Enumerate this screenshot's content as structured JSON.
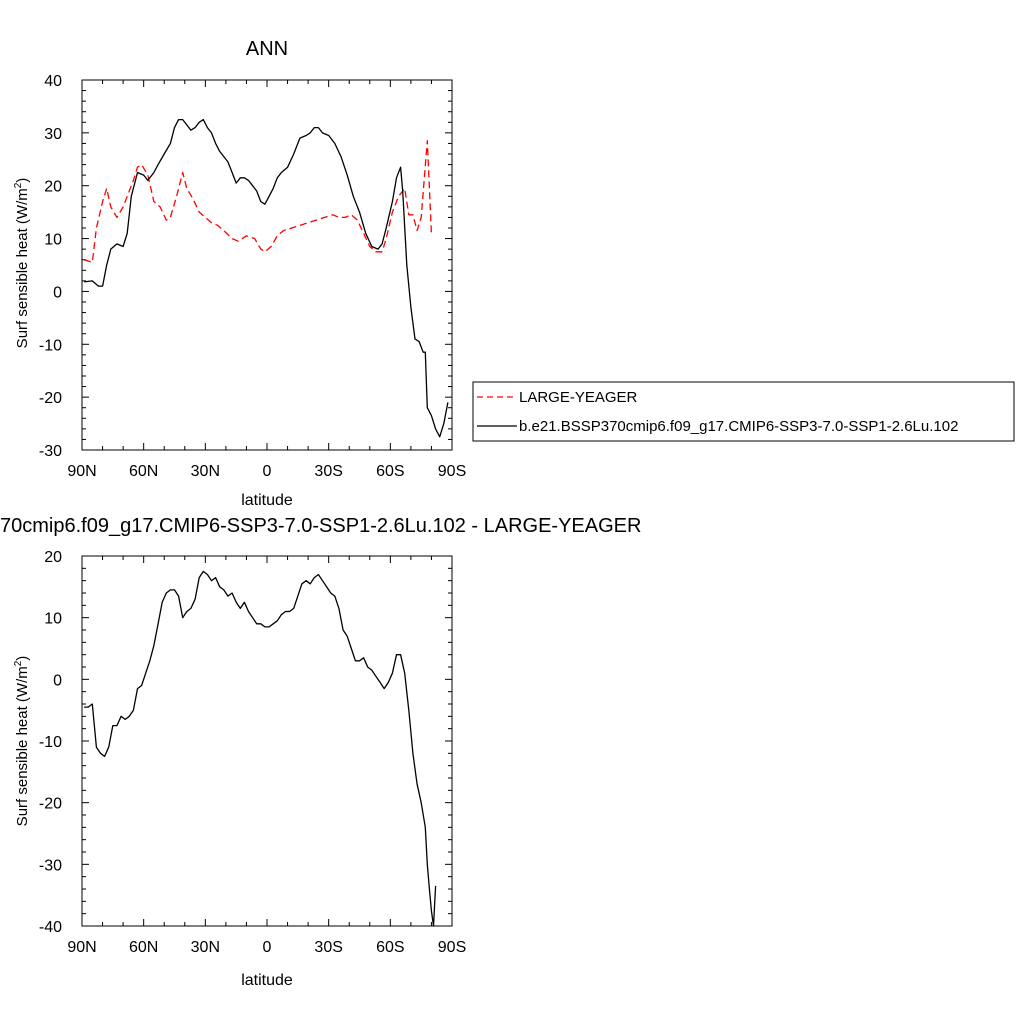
{
  "chart_data": [
    {
      "type": "line",
      "title": "ANN",
      "xlabel": "latitude",
      "ylabel": "Surf sensible heat (W/m",
      "ylabel_sup": "2",
      "ylabel_close": ")",
      "xlim": [
        90,
        -90
      ],
      "ylim": [
        -30,
        40
      ],
      "xticks": [
        90,
        60,
        30,
        0,
        -30,
        -60,
        -90
      ],
      "xtick_labels": [
        "90N",
        "60N",
        "30N",
        "0",
        "30S",
        "60S",
        "90S"
      ],
      "yticks": [
        -30,
        -20,
        -10,
        0,
        10,
        20,
        30,
        40
      ],
      "ytick_labels": [
        "-30",
        "-20",
        "-10",
        "0",
        "10",
        "20",
        "30",
        "40"
      ],
      "legend_position": "right",
      "series": [
        {
          "name": "LARGE-YEAGER",
          "color": "#ff0000",
          "dash": "dashed",
          "points": [
            [
              89,
              6
            ],
            [
              85,
              5.5
            ],
            [
              83,
              12
            ],
            [
              80,
              17
            ],
            [
              78,
              19.5
            ],
            [
              76,
              16
            ],
            [
              73,
              14
            ],
            [
              70,
              16
            ],
            [
              68,
              18
            ],
            [
              65,
              21
            ],
            [
              63,
              23.5
            ],
            [
              61,
              24
            ],
            [
              58,
              22
            ],
            [
              55,
              17
            ],
            [
              52,
              16
            ],
            [
              49,
              13.5
            ],
            [
              47,
              14
            ],
            [
              44,
              18
            ],
            [
              41,
              22.5
            ],
            [
              39,
              19.5
            ],
            [
              36,
              17.5
            ],
            [
              33,
              15
            ],
            [
              30,
              14
            ],
            [
              27,
              13
            ],
            [
              24,
              12.5
            ],
            [
              21,
              11.5
            ],
            [
              17,
              10
            ],
            [
              14,
              9.5
            ],
            [
              10,
              10.5
            ],
            [
              6,
              10
            ],
            [
              3,
              8
            ],
            [
              1,
              7.5
            ],
            [
              -2,
              8.5
            ],
            [
              -5,
              10.5
            ],
            [
              -8,
              11.5
            ],
            [
              -12,
              12
            ],
            [
              -16,
              12.5
            ],
            [
              -20,
              13
            ],
            [
              -24,
              13.5
            ],
            [
              -28,
              14
            ],
            [
              -32,
              14.5
            ],
            [
              -35,
              14
            ],
            [
              -38,
              14
            ],
            [
              -41,
              14.5
            ],
            [
              -44,
              13.5
            ],
            [
              -47,
              11
            ],
            [
              -50,
              8.5
            ],
            [
              -53,
              7.5
            ],
            [
              -56,
              7.5
            ],
            [
              -58,
              10
            ],
            [
              -61,
              15
            ],
            [
              -64,
              18
            ],
            [
              -67,
              19.5
            ],
            [
              -69,
              14.5
            ],
            [
              -71,
              14.5
            ],
            [
              -73,
              11.5
            ],
            [
              -75,
              14
            ],
            [
              -78,
              28.5
            ],
            [
              -80,
              11
            ]
          ]
        },
        {
          "name": "b.e21.BSSP370cmip6.f09_g17.CMIP6-SSP3-7.0-SSP1-2.6Lu.102",
          "color": "#000000",
          "dash": "solid",
          "points": [
            [
              89,
              1.8
            ],
            [
              85,
              2
            ],
            [
              82,
              1
            ],
            [
              80,
              1
            ],
            [
              78,
              5
            ],
            [
              76,
              8
            ],
            [
              73,
              9
            ],
            [
              70,
              8.5
            ],
            [
              68,
              11
            ],
            [
              66,
              18
            ],
            [
              63,
              22.5
            ],
            [
              60,
              22
            ],
            [
              58,
              21
            ],
            [
              55,
              22.5
            ],
            [
              53,
              24
            ],
            [
              50,
              26
            ],
            [
              47,
              28
            ],
            [
              45,
              31
            ],
            [
              43,
              32.5
            ],
            [
              41,
              32.5
            ],
            [
              39,
              31.5
            ],
            [
              37,
              30.5
            ],
            [
              35,
              31
            ],
            [
              33,
              32
            ],
            [
              31,
              32.5
            ],
            [
              29,
              31
            ],
            [
              27,
              30
            ],
            [
              25,
              28
            ],
            [
              23,
              26.5
            ],
            [
              21,
              25.5
            ],
            [
              19,
              24.5
            ],
            [
              17,
              22.5
            ],
            [
              15,
              20.5
            ],
            [
              13,
              21.5
            ],
            [
              11,
              21.5
            ],
            [
              9,
              21
            ],
            [
              7,
              20
            ],
            [
              5,
              19
            ],
            [
              3,
              17
            ],
            [
              1,
              16.5
            ],
            [
              -1,
              18
            ],
            [
              -3,
              19.5
            ],
            [
              -5,
              21.5
            ],
            [
              -7,
              22.5
            ],
            [
              -10,
              23.5
            ],
            [
              -13,
              26
            ],
            [
              -16,
              29
            ],
            [
              -19,
              29.5
            ],
            [
              -21,
              30
            ],
            [
              -23,
              31
            ],
            [
              -25,
              31
            ],
            [
              -27,
              30
            ],
            [
              -30,
              29.5
            ],
            [
              -33,
              28
            ],
            [
              -36,
              25.5
            ],
            [
              -39,
              22
            ],
            [
              -42,
              18
            ],
            [
              -45,
              15
            ],
            [
              -48,
              11
            ],
            [
              -51,
              8.5
            ],
            [
              -54,
              8
            ],
            [
              -56,
              9
            ],
            [
              -58,
              12
            ],
            [
              -61,
              17
            ],
            [
              -63,
              21.5
            ],
            [
              -65,
              23.5
            ],
            [
              -66,
              19
            ],
            [
              -68,
              5
            ],
            [
              -70,
              -3
            ],
            [
              -72,
              -9
            ],
            [
              -74,
              -9.5
            ],
            [
              -76,
              -11.5
            ],
            [
              -77,
              -11.5
            ],
            [
              -78,
              -22
            ],
            [
              -80,
              -23.5
            ],
            [
              -82,
              -26
            ],
            [
              -84,
              -27.5
            ],
            [
              -86,
              -25
            ],
            [
              -88,
              -21
            ]
          ]
        }
      ]
    },
    {
      "type": "line",
      "title": "70cmip6.f09_g17.CMIP6-SSP3-7.0-SSP1-2.6Lu.102 - LARGE-YEAGER",
      "xlabel": "latitude",
      "ylabel": "Surf sensible heat (W/m",
      "ylabel_sup": "2",
      "ylabel_close": ")",
      "xlim": [
        90,
        -90
      ],
      "ylim": [
        -40,
        20
      ],
      "xticks": [
        90,
        60,
        30,
        0,
        -30,
        -60,
        -90
      ],
      "xtick_labels": [
        "90N",
        "60N",
        "30N",
        "0",
        "30S",
        "60S",
        "90S"
      ],
      "yticks": [
        -40,
        -30,
        -20,
        -10,
        0,
        10,
        20
      ],
      "ytick_labels": [
        "-40",
        "-30",
        "-20",
        "-10",
        "0",
        "10",
        "20"
      ],
      "series": [
        {
          "color": "#000000",
          "dash": "solid",
          "points": [
            [
              89,
              -4.5
            ],
            [
              87,
              -4.5
            ],
            [
              85,
              -4
            ],
            [
              83,
              -11
            ],
            [
              81,
              -12
            ],
            [
              79,
              -12.5
            ],
            [
              77,
              -11
            ],
            [
              75,
              -7.5
            ],
            [
              73,
              -7.5
            ],
            [
              71,
              -6
            ],
            [
              69,
              -6.5
            ],
            [
              67,
              -6
            ],
            [
              65,
              -5
            ],
            [
              63,
              -1.5
            ],
            [
              61,
              -1
            ],
            [
              59,
              1
            ],
            [
              57,
              3
            ],
            [
              55,
              5.5
            ],
            [
              53,
              9
            ],
            [
              51,
              12.5
            ],
            [
              49,
              14
            ],
            [
              47,
              14.5
            ],
            [
              45,
              14.5
            ],
            [
              43,
              13.5
            ],
            [
              41,
              10
            ],
            [
              39,
              11
            ],
            [
              37,
              11.5
            ],
            [
              35,
              13
            ],
            [
              33,
              16.5
            ],
            [
              31,
              17.5
            ],
            [
              29,
              17
            ],
            [
              27,
              16
            ],
            [
              25,
              16.5
            ],
            [
              23,
              15
            ],
            [
              21,
              14.5
            ],
            [
              19,
              13.5
            ],
            [
              17,
              14
            ],
            [
              15,
              12.5
            ],
            [
              13,
              11.5
            ],
            [
              11,
              12.5
            ],
            [
              9,
              11
            ],
            [
              7,
              10
            ],
            [
              5,
              9
            ],
            [
              3,
              9
            ],
            [
              1,
              8.5
            ],
            [
              -1,
              8.5
            ],
            [
              -3,
              9
            ],
            [
              -5,
              9.5
            ],
            [
              -7,
              10.5
            ],
            [
              -9,
              11
            ],
            [
              -11,
              11
            ],
            [
              -13,
              11.5
            ],
            [
              -15,
              13.5
            ],
            [
              -17,
              15.5
            ],
            [
              -19,
              16
            ],
            [
              -21,
              15.5
            ],
            [
              -23,
              16.5
            ],
            [
              -25,
              17
            ],
            [
              -27,
              16
            ],
            [
              -29,
              15
            ],
            [
              -31,
              14
            ],
            [
              -33,
              13.5
            ],
            [
              -35,
              11.5
            ],
            [
              -37,
              8
            ],
            [
              -39,
              7
            ],
            [
              -41,
              5
            ],
            [
              -43,
              3
            ],
            [
              -45,
              3
            ],
            [
              -47,
              3.5
            ],
            [
              -49,
              2
            ],
            [
              -51,
              1.5
            ],
            [
              -53,
              0.5
            ],
            [
              -55,
              -0.5
            ],
            [
              -57,
              -1.5
            ],
            [
              -59,
              -0.5
            ],
            [
              -61,
              1
            ],
            [
              -63,
              4
            ],
            [
              -65,
              4
            ],
            [
              -67,
              1
            ],
            [
              -69,
              -5
            ],
            [
              -71,
              -12
            ],
            [
              -73,
              -17
            ],
            [
              -75,
              -20
            ],
            [
              -77,
              -24
            ],
            [
              -78,
              -30
            ],
            [
              -79,
              -34
            ],
            [
              -80,
              -37.5
            ],
            [
              -81,
              -40
            ],
            [
              -82,
              -33.5
            ]
          ]
        }
      ]
    }
  ]
}
